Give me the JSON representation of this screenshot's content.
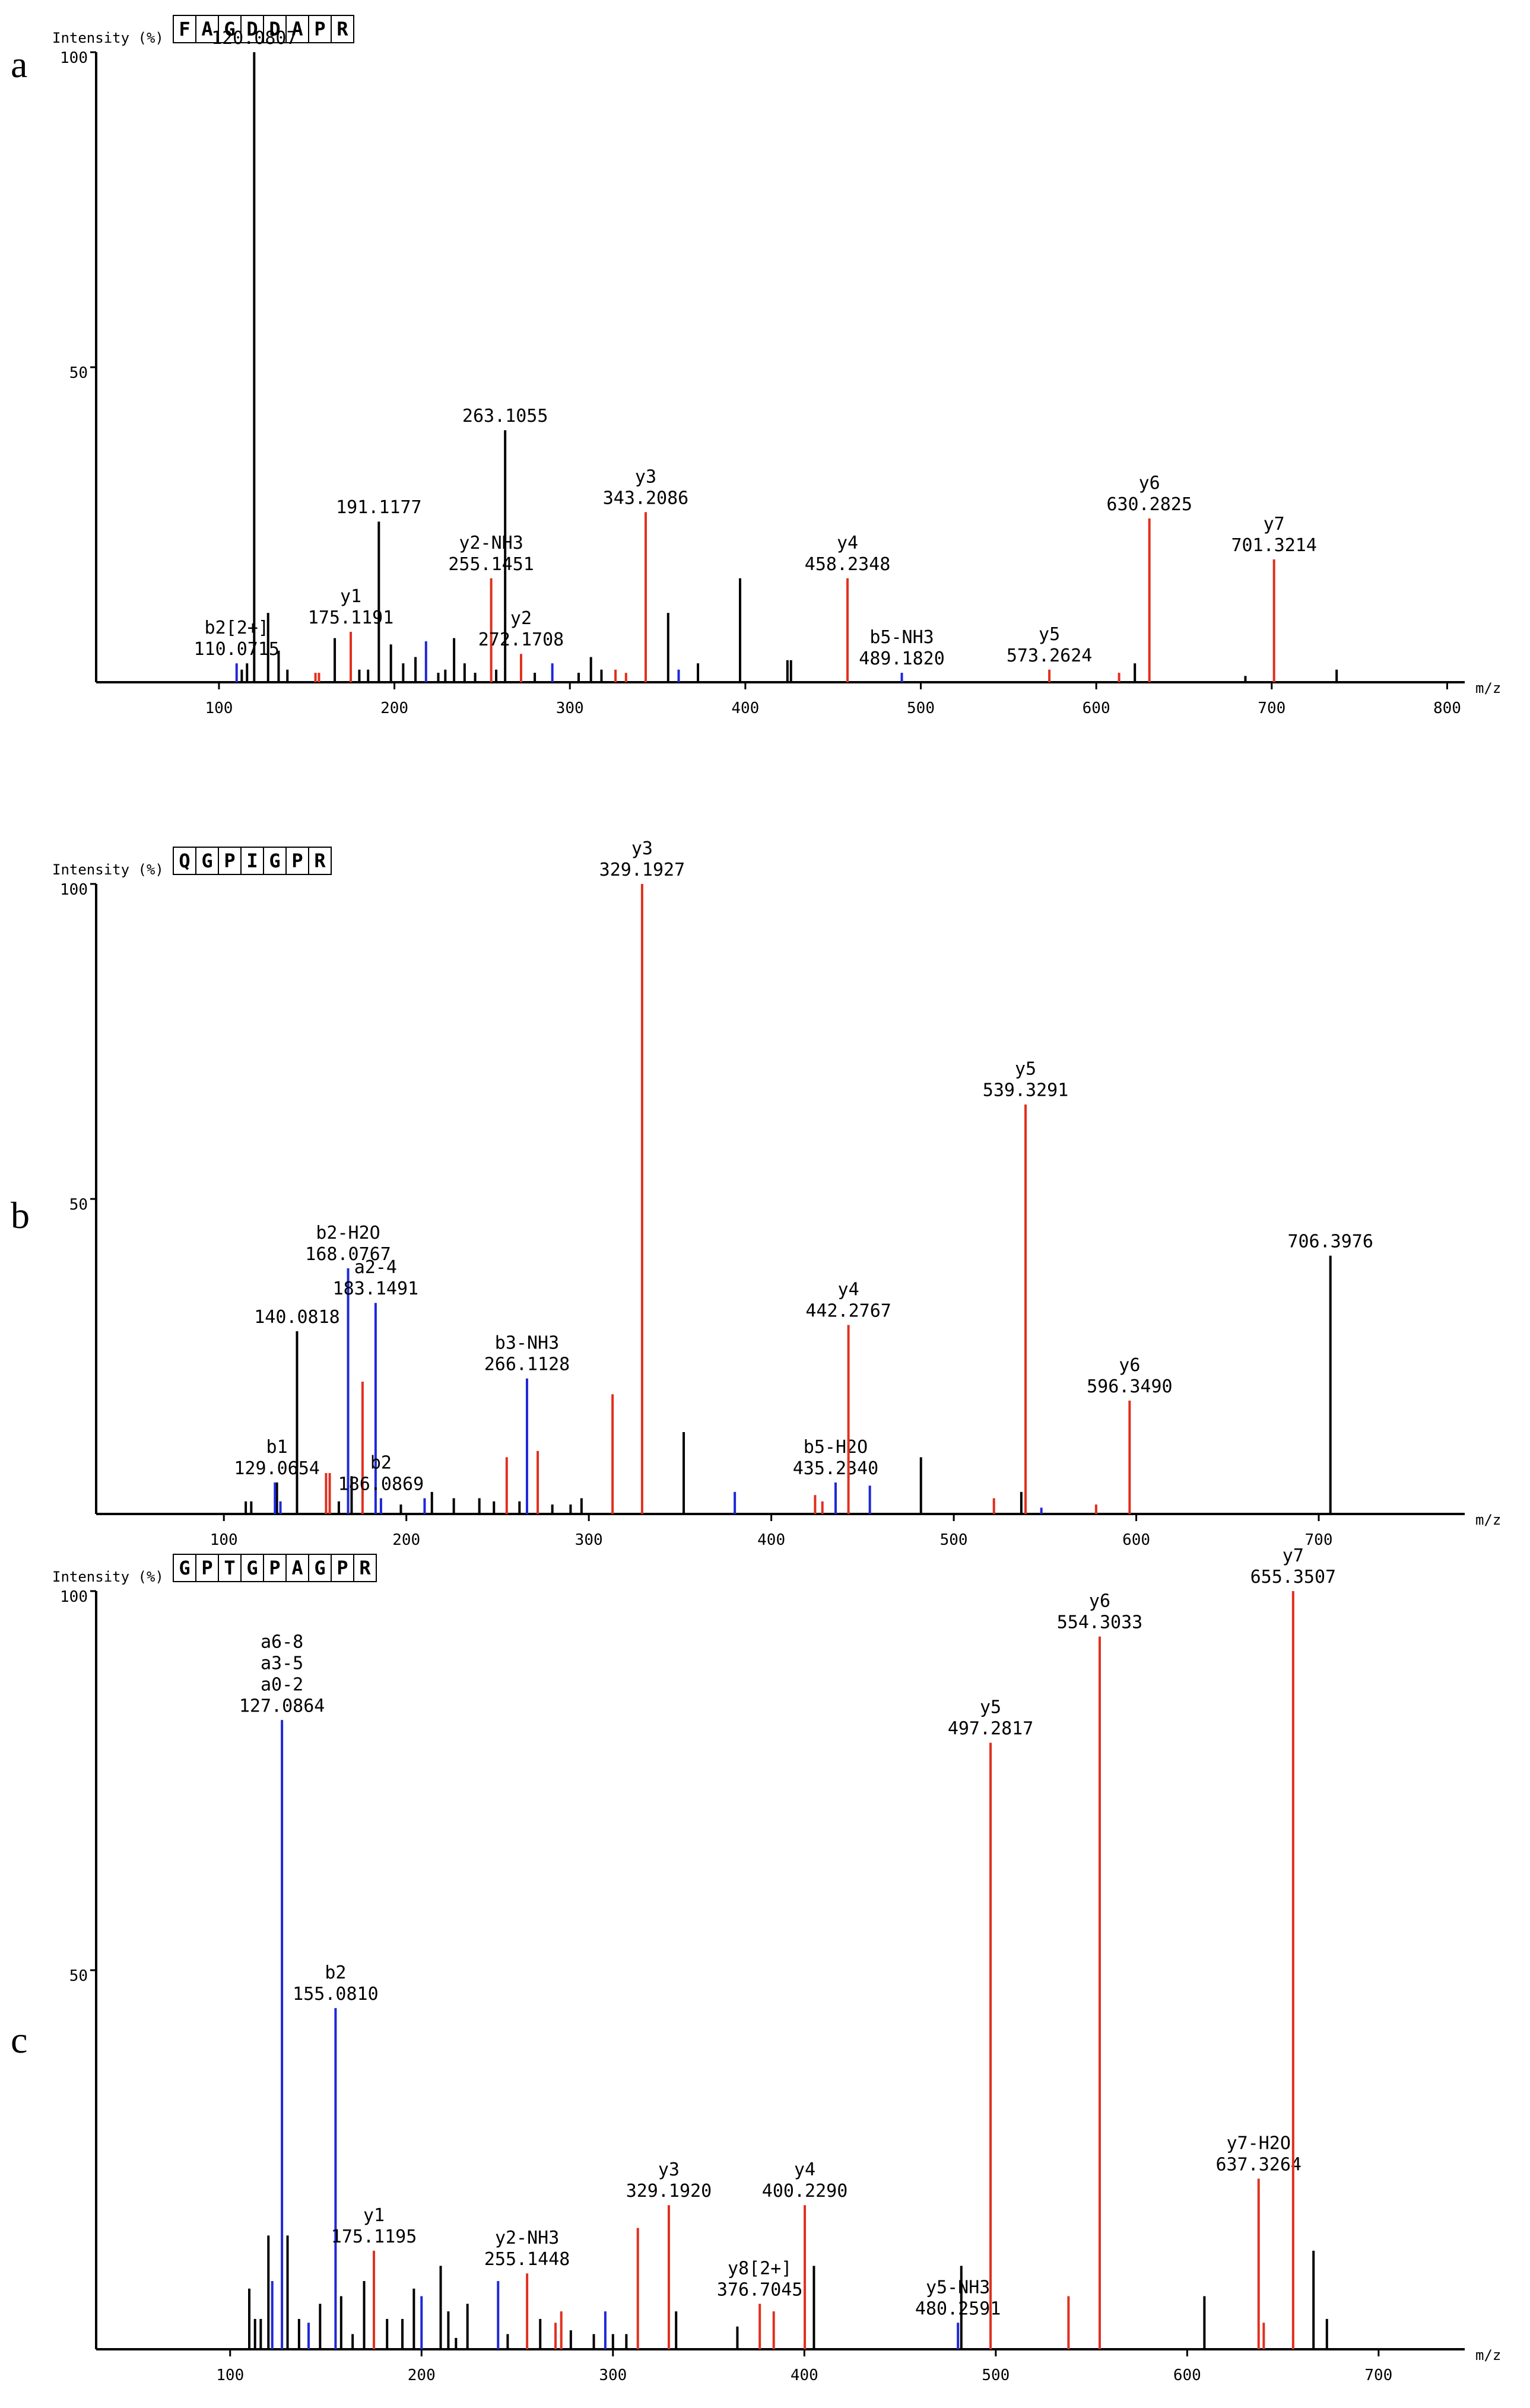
{
  "colors": {
    "y_ion": "#e0301e",
    "b_ion": "#1f28d6",
    "other": "#000000",
    "axis": "#000000"
  },
  "chart_data": [
    {
      "type": "spectrum",
      "panel_label": "a",
      "ylabel": "Intensity (%)",
      "xlabel": "m/z",
      "sequence": [
        "F",
        "A",
        "G",
        "D",
        "D",
        "A",
        "P",
        "R"
      ],
      "xlim": [
        30,
        810
      ],
      "ylim": [
        0,
        100
      ],
      "xticks": [
        100,
        200,
        300,
        400,
        500,
        600,
        700,
        800
      ],
      "yticks": [
        50,
        100
      ],
      "peaks": [
        {
          "mz": 110.0715,
          "i": 3,
          "c": "b",
          "label": [
            "b2[2+]",
            "110.0715"
          ]
        },
        {
          "mz": 113,
          "i": 2,
          "c": "k"
        },
        {
          "mz": 116,
          "i": 3,
          "c": "k"
        },
        {
          "mz": 120.0807,
          "i": 100,
          "c": "k",
          "label": [
            "120.0807"
          ]
        },
        {
          "mz": 128,
          "i": 11,
          "c": "k"
        },
        {
          "mz": 134,
          "i": 5,
          "c": "k"
        },
        {
          "mz": 139,
          "i": 2,
          "c": "k"
        },
        {
          "mz": 155,
          "i": 1.5,
          "c": "r"
        },
        {
          "mz": 157,
          "i": 1.5,
          "c": "r"
        },
        {
          "mz": 166,
          "i": 7,
          "c": "k"
        },
        {
          "mz": 175.1191,
          "i": 8,
          "c": "r",
          "label": [
            "y1",
            "175.1191"
          ]
        },
        {
          "mz": 180,
          "i": 2,
          "c": "k"
        },
        {
          "mz": 185,
          "i": 2,
          "c": "k"
        },
        {
          "mz": 191.1177,
          "i": 25.5,
          "c": "k",
          "label": [
            "191.1177"
          ]
        },
        {
          "mz": 198,
          "i": 6,
          "c": "k"
        },
        {
          "mz": 205,
          "i": 3,
          "c": "k"
        },
        {
          "mz": 212,
          "i": 4,
          "c": "k"
        },
        {
          "mz": 218,
          "i": 6.5,
          "c": "b"
        },
        {
          "mz": 225,
          "i": 1.5,
          "c": "k"
        },
        {
          "mz": 229,
          "i": 2,
          "c": "k"
        },
        {
          "mz": 234,
          "i": 7,
          "c": "k"
        },
        {
          "mz": 240,
          "i": 3,
          "c": "k"
        },
        {
          "mz": 246,
          "i": 1.5,
          "c": "k"
        },
        {
          "mz": 255.1451,
          "i": 16.5,
          "c": "r",
          "label": [
            "y2-NH3",
            "255.1451"
          ]
        },
        {
          "mz": 258,
          "i": 2,
          "c": "k"
        },
        {
          "mz": 263.1055,
          "i": 40,
          "c": "k",
          "label": [
            "263.1055"
          ]
        },
        {
          "mz": 272.1708,
          "i": 4.5,
          "c": "r",
          "label": [
            "y2",
            "272.1708"
          ]
        },
        {
          "mz": 280,
          "i": 1.5,
          "c": "k"
        },
        {
          "mz": 290,
          "i": 3,
          "c": "b"
        },
        {
          "mz": 305,
          "i": 1.5,
          "c": "k"
        },
        {
          "mz": 312,
          "i": 4,
          "c": "k"
        },
        {
          "mz": 318,
          "i": 2,
          "c": "k"
        },
        {
          "mz": 326,
          "i": 2,
          "c": "r"
        },
        {
          "mz": 332,
          "i": 1.5,
          "c": "r"
        },
        {
          "mz": 343.2086,
          "i": 27,
          "c": "r",
          "label": [
            "y3",
            "343.2086"
          ]
        },
        {
          "mz": 356,
          "i": 11,
          "c": "k"
        },
        {
          "mz": 362,
          "i": 2,
          "c": "b"
        },
        {
          "mz": 373,
          "i": 3,
          "c": "k"
        },
        {
          "mz": 397,
          "i": 16.5,
          "c": "k"
        },
        {
          "mz": 424,
          "i": 3.5,
          "c": "k"
        },
        {
          "mz": 426,
          "i": 3.5,
          "c": "k"
        },
        {
          "mz": 458.2348,
          "i": 16.5,
          "c": "r",
          "label": [
            "y4",
            "458.2348"
          ]
        },
        {
          "mz": 489.182,
          "i": 1.5,
          "c": "b",
          "label": [
            "b5-NH3",
            "489.1820"
          ]
        },
        {
          "mz": 573.2624,
          "i": 2,
          "c": "r",
          "label": [
            "y5",
            "573.2624"
          ]
        },
        {
          "mz": 613,
          "i": 1.5,
          "c": "r"
        },
        {
          "mz": 622,
          "i": 3,
          "c": "k"
        },
        {
          "mz": 630.2825,
          "i": 26,
          "c": "r",
          "label": [
            "y6",
            "630.2825"
          ]
        },
        {
          "mz": 685,
          "i": 1,
          "c": "k"
        },
        {
          "mz": 701.3214,
          "i": 19.5,
          "c": "r",
          "label": [
            "y7",
            "701.3214"
          ]
        },
        {
          "mz": 737,
          "i": 2,
          "c": "k"
        }
      ]
    },
    {
      "type": "spectrum",
      "panel_label": "b",
      "ylabel": "Intensity (%)",
      "xlabel": "m/z",
      "sequence": [
        "Q",
        "G",
        "P",
        "I",
        "G",
        "P",
        "R"
      ],
      "xlim": [
        30,
        780
      ],
      "ylim": [
        0,
        100
      ],
      "xticks": [
        100,
        200,
        300,
        400,
        500,
        600,
        700
      ],
      "yticks": [
        50,
        100
      ],
      "peaks": [
        {
          "mz": 112,
          "i": 2,
          "c": "k"
        },
        {
          "mz": 115,
          "i": 2,
          "c": "k"
        },
        {
          "mz": 129.0654,
          "i": 5,
          "c": "k",
          "label": [
            "b1",
            "129.0654"
          ]
        },
        {
          "mz": 128,
          "i": 5,
          "c": "b"
        },
        {
          "mz": 131,
          "i": 2,
          "c": "b"
        },
        {
          "mz": 140.0818,
          "i": 29,
          "c": "k",
          "label": [
            "140.0818"
          ]
        },
        {
          "mz": 156,
          "i": 6.5,
          "c": "r"
        },
        {
          "mz": 158,
          "i": 6.5,
          "c": "r"
        },
        {
          "mz": 163,
          "i": 2,
          "c": "k"
        },
        {
          "mz": 168.0767,
          "i": 39,
          "c": "b",
          "label": [
            "b2-H2O",
            "168.0767"
          ]
        },
        {
          "mz": 170,
          "i": 6,
          "c": "k"
        },
        {
          "mz": 176,
          "i": 21,
          "c": "r"
        },
        {
          "mz": 183.1491,
          "i": 33.5,
          "c": "b",
          "label": [
            "a2-4",
            "183.1491"
          ]
        },
        {
          "mz": 186.0869,
          "i": 2.5,
          "c": "b",
          "label": [
            "b2",
            "186.0869"
          ]
        },
        {
          "mz": 197,
          "i": 1.5,
          "c": "k"
        },
        {
          "mz": 210,
          "i": 2.5,
          "c": "b"
        },
        {
          "mz": 214,
          "i": 3.5,
          "c": "k"
        },
        {
          "mz": 226,
          "i": 2.5,
          "c": "k"
        },
        {
          "mz": 240,
          "i": 2.5,
          "c": "k"
        },
        {
          "mz": 248,
          "i": 2,
          "c": "k"
        },
        {
          "mz": 255,
          "i": 9,
          "c": "r"
        },
        {
          "mz": 262,
          "i": 2,
          "c": "k"
        },
        {
          "mz": 266.1128,
          "i": 21.5,
          "c": "b",
          "label": [
            "b3-NH3",
            "266.1128"
          ]
        },
        {
          "mz": 272,
          "i": 10,
          "c": "r"
        },
        {
          "mz": 280,
          "i": 1.5,
          "c": "k"
        },
        {
          "mz": 290,
          "i": 1.5,
          "c": "k"
        },
        {
          "mz": 296,
          "i": 2.5,
          "c": "k"
        },
        {
          "mz": 313,
          "i": 19,
          "c": "r"
        },
        {
          "mz": 329.1927,
          "i": 100,
          "c": "r",
          "label": [
            "y3",
            "329.1927"
          ]
        },
        {
          "mz": 352,
          "i": 13,
          "c": "k"
        },
        {
          "mz": 380,
          "i": 3.5,
          "c": "b"
        },
        {
          "mz": 424,
          "i": 3,
          "c": "r"
        },
        {
          "mz": 428,
          "i": 2,
          "c": "r"
        },
        {
          "mz": 435.234,
          "i": 5,
          "c": "b",
          "label": [
            "b5-H2O",
            "435.2340"
          ]
        },
        {
          "mz": 442.2767,
          "i": 30,
          "c": "r",
          "label": [
            "y4",
            "442.2767"
          ]
        },
        {
          "mz": 454,
          "i": 4.5,
          "c": "b"
        },
        {
          "mz": 482,
          "i": 9,
          "c": "k"
        },
        {
          "mz": 522,
          "i": 2.5,
          "c": "r"
        },
        {
          "mz": 537,
          "i": 3.5,
          "c": "k"
        },
        {
          "mz": 539.3291,
          "i": 65,
          "c": "r",
          "label": [
            "y5",
            "539.3291"
          ]
        },
        {
          "mz": 548,
          "i": 1,
          "c": "b"
        },
        {
          "mz": 578,
          "i": 1.5,
          "c": "r"
        },
        {
          "mz": 596.349,
          "i": 18,
          "c": "r",
          "label": [
            "y6",
            "596.3490"
          ]
        },
        {
          "mz": 706.3976,
          "i": 41,
          "c": "k",
          "label": [
            "706.3976"
          ]
        }
      ]
    },
    {
      "type": "spectrum",
      "panel_label": "c",
      "ylabel": "Intensity (%)",
      "xlabel": "m/z",
      "sequence": [
        "G",
        "P",
        "T",
        "G",
        "P",
        "A",
        "G",
        "P",
        "R"
      ],
      "xlim": [
        30,
        745
      ],
      "ylim": [
        0,
        100
      ],
      "xticks": [
        100,
        200,
        300,
        400,
        500,
        600,
        700
      ],
      "yticks": [
        50,
        100
      ],
      "peaks": [
        {
          "mz": 110,
          "i": 8,
          "c": "k"
        },
        {
          "mz": 113,
          "i": 4,
          "c": "k"
        },
        {
          "mz": 116,
          "i": 4,
          "c": "k"
        },
        {
          "mz": 120,
          "i": 15,
          "c": "k"
        },
        {
          "mz": 122,
          "i": 9,
          "c": "b"
        },
        {
          "mz": 127.0864,
          "i": 83,
          "c": "b",
          "label": [
            "a6-8",
            "a3-5",
            "a0-2",
            "127.0864"
          ]
        },
        {
          "mz": 130,
          "i": 15,
          "c": "k"
        },
        {
          "mz": 136,
          "i": 4,
          "c": "k"
        },
        {
          "mz": 141,
          "i": 3.5,
          "c": "b"
        },
        {
          "mz": 147,
          "i": 6,
          "c": "k"
        },
        {
          "mz": 155.081,
          "i": 45,
          "c": "b",
          "label": [
            "b2",
            "155.0810"
          ]
        },
        {
          "mz": 158,
          "i": 7,
          "c": "k"
        },
        {
          "mz": 164,
          "i": 2,
          "c": "k"
        },
        {
          "mz": 170,
          "i": 9,
          "c": "k"
        },
        {
          "mz": 175.1195,
          "i": 13,
          "c": "r",
          "label": [
            "y1",
            "175.1195"
          ]
        },
        {
          "mz": 182,
          "i": 4,
          "c": "k"
        },
        {
          "mz": 190,
          "i": 4,
          "c": "k"
        },
        {
          "mz": 196,
          "i": 8,
          "c": "k"
        },
        {
          "mz": 200,
          "i": 7,
          "c": "b"
        },
        {
          "mz": 210,
          "i": 11,
          "c": "k"
        },
        {
          "mz": 214,
          "i": 5,
          "c": "k"
        },
        {
          "mz": 218,
          "i": 1.5,
          "c": "k"
        },
        {
          "mz": 224,
          "i": 6,
          "c": "k"
        },
        {
          "mz": 240,
          "i": 9,
          "c": "b"
        },
        {
          "mz": 245,
          "i": 2,
          "c": "k"
        },
        {
          "mz": 255.1448,
          "i": 10,
          "c": "r",
          "label": [
            "y2-NH3",
            "255.1448"
          ]
        },
        {
          "mz": 262,
          "i": 4,
          "c": "k"
        },
        {
          "mz": 270,
          "i": 3.5,
          "c": "r"
        },
        {
          "mz": 273,
          "i": 5,
          "c": "r"
        },
        {
          "mz": 278,
          "i": 2.5,
          "c": "k"
        },
        {
          "mz": 290,
          "i": 2,
          "c": "k"
        },
        {
          "mz": 296,
          "i": 5,
          "c": "b"
        },
        {
          "mz": 300,
          "i": 2,
          "c": "k"
        },
        {
          "mz": 307,
          "i": 2,
          "c": "k"
        },
        {
          "mz": 313,
          "i": 16,
          "c": "r"
        },
        {
          "mz": 329.192,
          "i": 19,
          "c": "r",
          "label": [
            "y3",
            "329.1920"
          ]
        },
        {
          "mz": 333,
          "i": 5,
          "c": "k"
        },
        {
          "mz": 365,
          "i": 3,
          "c": "k"
        },
        {
          "mz": 376.7045,
          "i": 6,
          "c": "r",
          "label": [
            "y8[2+]",
            "376.7045"
          ]
        },
        {
          "mz": 384,
          "i": 5,
          "c": "r"
        },
        {
          "mz": 400.229,
          "i": 19,
          "c": "r",
          "label": [
            "y4",
            "400.2290"
          ]
        },
        {
          "mz": 405,
          "i": 11,
          "c": "k"
        },
        {
          "mz": 480.2591,
          "i": 3.5,
          "c": "b",
          "label": [
            "y5-NH3",
            "480.2591"
          ]
        },
        {
          "mz": 482,
          "i": 11,
          "c": "k"
        },
        {
          "mz": 497.2817,
          "i": 80,
          "c": "r",
          "label": [
            "y5",
            "497.2817"
          ]
        },
        {
          "mz": 538,
          "i": 7,
          "c": "r"
        },
        {
          "mz": 554.3033,
          "i": 94,
          "c": "r",
          "label": [
            "y6",
            "554.3033"
          ]
        },
        {
          "mz": 609,
          "i": 7,
          "c": "k"
        },
        {
          "mz": 637.3264,
          "i": 22.5,
          "c": "r",
          "label": [
            "y7-H2O",
            "637.3264"
          ]
        },
        {
          "mz": 640,
          "i": 3.5,
          "c": "r"
        },
        {
          "mz": 655.3507,
          "i": 100,
          "c": "r",
          "label": [
            "y7",
            "655.3507"
          ]
        },
        {
          "mz": 666,
          "i": 13,
          "c": "k"
        },
        {
          "mz": 673,
          "i": 4,
          "c": "k"
        }
      ]
    }
  ]
}
